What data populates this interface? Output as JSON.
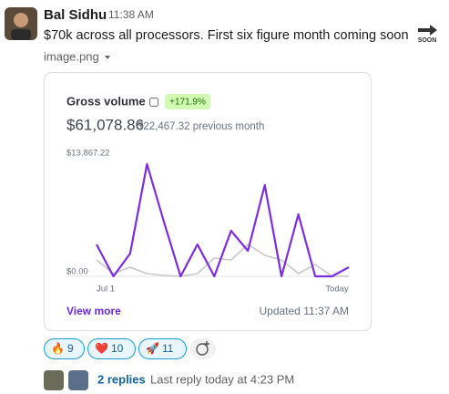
{
  "message": {
    "author": "Bal Sidhu",
    "time": "11:38 AM",
    "text": "$70k across all processors. First six figure month coming soon",
    "emoji_text": "SOON",
    "attachment": "image.png"
  },
  "card": {
    "title": "Gross volume",
    "badge": "+171.9%",
    "amount": "$61,078.86",
    "previous": "$22,467.32 previous month",
    "link": "View more",
    "updated": "Updated 11:37 AM"
  },
  "chart_data": {
    "type": "line",
    "categories": [
      "Jul 1",
      null,
      null,
      null,
      null,
      null,
      null,
      null,
      null,
      null,
      null,
      null,
      null,
      null,
      null,
      "Today"
    ],
    "series": [
      {
        "color": "#c8c8c8",
        "values": [
          1920,
          320,
          1067,
          320,
          107,
          0,
          320,
          2133,
          1920,
          3733,
          2453,
          1920,
          320,
          1387,
          0,
          0
        ]
      },
      {
        "color": "#7a2ee0",
        "values": [
          3733,
          0,
          2667,
          13120,
          6400,
          0,
          3733,
          0,
          5333,
          2987,
          10667,
          0,
          7253,
          0,
          0,
          1067
        ]
      }
    ],
    "ylim": [
      0,
      13867.22
    ],
    "yticks": [
      {
        "value": 13867.22,
        "label": "$13,867.22"
      },
      {
        "value": 0,
        "label": "$0.00"
      }
    ]
  },
  "reactions": [
    {
      "emoji": "🔥",
      "count": "9"
    },
    {
      "emoji": "❤️",
      "count": "10"
    },
    {
      "emoji": "🚀",
      "count": "11"
    }
  ],
  "thread": {
    "replies": "2 replies",
    "last_reply": "Last reply today at 4:23 PM"
  }
}
